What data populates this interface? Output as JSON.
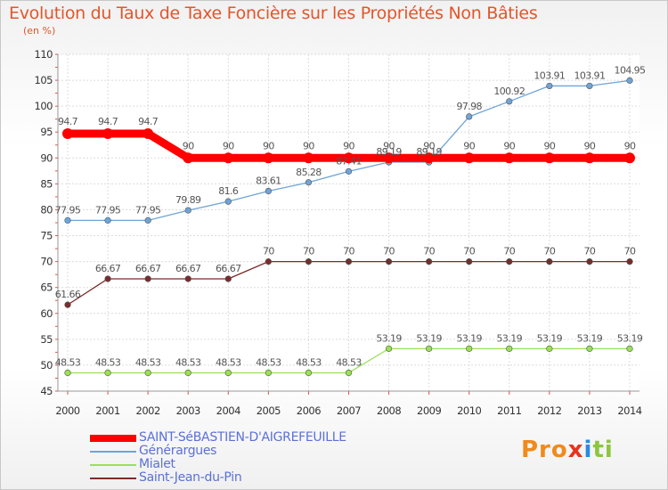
{
  "chart_data": {
    "type": "line",
    "title": "Evolution du Taux de Taxe Foncière sur les Propriétés Non Bâties",
    "ylabel": "(en %)",
    "xlabel": "",
    "ylim": [
      45,
      110
    ],
    "yticks": [
      "45",
      "50",
      "55",
      "60",
      "65",
      "70",
      "75",
      "80",
      "85",
      "90",
      "95",
      "100",
      "105",
      "110"
    ],
    "categories": [
      "2000",
      "2001",
      "2002",
      "2003",
      "2004",
      "2005",
      "2006",
      "2007",
      "2008",
      "2009",
      "2010",
      "2011",
      "2012",
      "2013",
      "2014"
    ],
    "grid": true,
    "series": [
      {
        "name": "SAINT-SéBASTIEN-D'AIGREFEUILLE",
        "color": "#ff0000",
        "values": [
          94.7,
          94.7,
          94.7,
          90,
          90,
          90,
          90,
          90,
          90,
          90,
          90,
          90,
          90,
          90,
          90
        ],
        "labels": [
          "94.7",
          "94.7",
          "94.7",
          "90",
          "90",
          "90",
          "90",
          "90",
          "90",
          "90",
          "90",
          "90",
          "90",
          "90",
          "90"
        ]
      },
      {
        "name": "Générargues",
        "color": "#6fa4d6",
        "values": [
          77.95,
          77.95,
          77.95,
          79.89,
          81.6,
          83.61,
          85.28,
          87.41,
          89.19,
          89.19,
          97.98,
          100.92,
          103.91,
          103.91,
          104.95
        ],
        "labels": [
          "77.95",
          "77.95",
          "77.95",
          "79.89",
          "81.6",
          "83.61",
          "85.28",
          "87.41",
          "89.19",
          "89.19",
          "97.98",
          "100.92",
          "103.91",
          "103.91",
          "104.95"
        ]
      },
      {
        "name": "Mialet",
        "color": "#99e05a",
        "values": [
          48.53,
          48.53,
          48.53,
          48.53,
          48.53,
          48.53,
          48.53,
          48.53,
          53.19,
          53.19,
          53.19,
          53.19,
          53.19,
          53.19,
          53.19
        ],
        "labels": [
          "48.53",
          "48.53",
          "48.53",
          "48.53",
          "48.53",
          "48.53",
          "48.53",
          "48.53",
          "53.19",
          "53.19",
          "53.19",
          "53.19",
          "53.19",
          "53.19",
          "53.19"
        ]
      },
      {
        "name": "Saint-Jean-du-Pin",
        "color": "#7b2b2b",
        "values": [
          61.66,
          66.67,
          66.67,
          66.67,
          66.67,
          70,
          70,
          70,
          70,
          70,
          70,
          70,
          70,
          70,
          70
        ],
        "labels": [
          "61.66",
          "66.67",
          "66.67",
          "66.67",
          "66.67",
          "70",
          "70",
          "70",
          "70",
          "70",
          "70",
          "70",
          "70",
          "70",
          "70"
        ]
      }
    ]
  },
  "brand": {
    "logo_parts": [
      "Pro",
      "x",
      "i",
      "ti"
    ]
  }
}
